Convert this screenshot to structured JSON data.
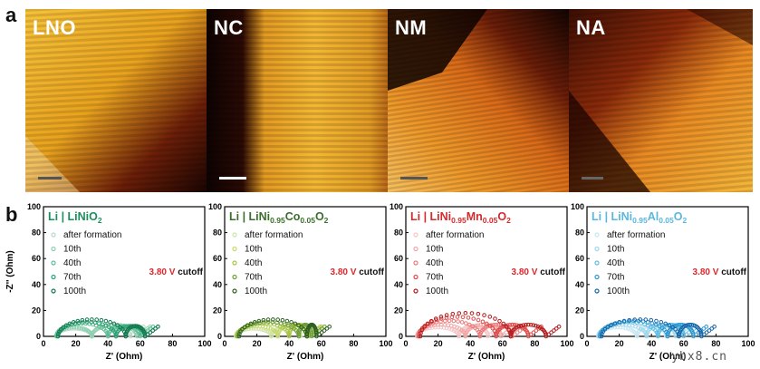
{
  "panel_a_label": "a",
  "panel_b_label": "b",
  "tem_images": [
    {
      "label": "LNO",
      "style": "lno"
    },
    {
      "label": "NC",
      "style": "nc"
    },
    {
      "label": "NM",
      "style": "nm"
    },
    {
      "label": "NA",
      "style": "na"
    }
  ],
  "watermark": "ybx8.cn",
  "chart_data": [
    {
      "type": "scatter",
      "title": {
        "base": "Li | LiNiO",
        "sub": "2"
      },
      "title_color": "#1a8f5c",
      "cutoff": "3.80 V cutoff",
      "xlabel": "Z' (Ohm)",
      "ylabel": "-Z'' (Ohm)",
      "xlim": [
        0,
        100
      ],
      "ylim": [
        0,
        100
      ],
      "ticks": [
        "0",
        "20",
        "40",
        "60",
        "80",
        "100"
      ],
      "series": [
        {
          "name": "after formation",
          "color": "#b9d9c8",
          "r_s": 8,
          "arcs": [
            {
              "c": 19,
              "h": 6
            },
            {
              "c": 42,
              "h": 8
            }
          ]
        },
        {
          "name": "10th",
          "color": "#8fd0b0",
          "r_s": 8,
          "arcs": [
            {
              "c": 19,
              "h": 7
            },
            {
              "c": 44,
              "h": 9
            }
          ]
        },
        {
          "name": "40th",
          "color": "#5fbe95",
          "r_s": 8,
          "arcs": [
            {
              "c": 24,
              "h": 10
            },
            {
              "c": 50,
              "h": 8
            }
          ]
        },
        {
          "name": "70th",
          "color": "#2aa276",
          "r_s": 9,
          "arcs": [
            {
              "c": 27,
              "h": 11
            },
            {
              "c": 54,
              "h": 8
            }
          ]
        },
        {
          "name": "100th",
          "color": "#137a4f",
          "r_s": 9,
          "arcs": [
            {
              "c": 30,
              "h": 13
            },
            {
              "c": 57,
              "h": 8
            }
          ]
        }
      ]
    },
    {
      "type": "scatter",
      "title": {
        "base": "Li | LiNi",
        "sub": "0.95",
        "mid": "Co",
        "sub2": "0.05",
        "end": "O",
        "sub3": "2"
      },
      "title_color": "#3b6e2a",
      "cutoff": "3.80 V cutoff",
      "xlabel": "Z' (Ohm)",
      "ylabel": "",
      "xlim": [
        0,
        100
      ],
      "ylim": [
        0,
        100
      ],
      "ticks": [
        "0",
        "20",
        "40",
        "60",
        "80",
        "100"
      ],
      "series": [
        {
          "name": "after formation",
          "color": "#cfe3a8",
          "r_s": 7,
          "arcs": [
            {
              "c": 18,
              "h": 6
            },
            {
              "c": 38,
              "h": 7
            }
          ]
        },
        {
          "name": "10th",
          "color": "#c6d96a",
          "r_s": 7,
          "arcs": [
            {
              "c": 20,
              "h": 8
            },
            {
              "c": 42,
              "h": 9
            }
          ]
        },
        {
          "name": "40th",
          "color": "#a8c545",
          "r_s": 8,
          "arcs": [
            {
              "c": 24,
              "h": 10
            },
            {
              "c": 46,
              "h": 9
            }
          ]
        },
        {
          "name": "70th",
          "color": "#6fa03a",
          "r_s": 8,
          "arcs": [
            {
              "c": 27,
              "h": 11
            },
            {
              "c": 50,
              "h": 9
            }
          ]
        },
        {
          "name": "100th",
          "color": "#2f5f22",
          "r_s": 9,
          "arcs": [
            {
              "c": 30,
              "h": 13
            },
            {
              "c": 54,
              "h": 9
            }
          ]
        }
      ]
    },
    {
      "type": "scatter",
      "title": {
        "base": "Li | LiNi",
        "sub": "0.95",
        "mid": "Mn",
        "sub2": "0.05",
        "end": "O",
        "sub3": "2"
      },
      "title_color": "#d22b2b",
      "cutoff": "3.80 V cutoff",
      "xlabel": "Z' (Ohm)",
      "ylabel": "",
      "xlim": [
        0,
        100
      ],
      "ylim": [
        0,
        100
      ],
      "ticks": [
        "0",
        "20",
        "40",
        "60",
        "80",
        "100"
      ],
      "series": [
        {
          "name": "after formation",
          "color": "#f5c6c6",
          "r_s": 7,
          "arcs": [
            {
              "c": 20,
              "h": 7
            },
            {
              "c": 42,
              "h": 8
            }
          ]
        },
        {
          "name": "10th",
          "color": "#f2a6a6",
          "r_s": 7,
          "arcs": [
            {
              "c": 22,
              "h": 9
            },
            {
              "c": 48,
              "h": 9
            }
          ]
        },
        {
          "name": "40th",
          "color": "#ea7a7a",
          "r_s": 8,
          "arcs": [
            {
              "c": 27,
              "h": 12
            },
            {
              "c": 56,
              "h": 9
            }
          ]
        },
        {
          "name": "70th",
          "color": "#de4a4a",
          "r_s": 8,
          "arcs": [
            {
              "c": 32,
              "h": 15
            },
            {
              "c": 66,
              "h": 9
            }
          ]
        },
        {
          "name": "100th",
          "color": "#b01c1c",
          "r_s": 9,
          "arcs": [
            {
              "c": 37,
              "h": 18
            },
            {
              "c": 76,
              "h": 9
            }
          ]
        }
      ]
    },
    {
      "type": "scatter",
      "title": {
        "base": "Li | LiNi",
        "sub": "0.95",
        "mid": "Al",
        "sub2": "0.05",
        "end": "O",
        "sub3": "2"
      },
      "title_color": "#5bb7dd",
      "cutoff": "3.80 V cutoff",
      "xlabel": "Z' (Ohm)",
      "ylabel": "",
      "xlim": [
        0,
        100
      ],
      "ylim": [
        0,
        100
      ],
      "ticks": [
        "0",
        "20",
        "40",
        "60",
        "80",
        "100"
      ],
      "series": [
        {
          "name": "after formation",
          "color": "#c8e7f3",
          "r_s": 7,
          "arcs": [
            {
              "c": 19,
              "h": 7
            },
            {
              "c": 40,
              "h": 8
            }
          ]
        },
        {
          "name": "10th",
          "color": "#9fd7ee",
          "r_s": 7,
          "arcs": [
            {
              "c": 22,
              "h": 9
            },
            {
              "c": 46,
              "h": 9
            }
          ]
        },
        {
          "name": "40th",
          "color": "#5fbde3",
          "r_s": 8,
          "arcs": [
            {
              "c": 26,
              "h": 11
            },
            {
              "c": 52,
              "h": 9
            }
          ]
        },
        {
          "name": "70th",
          "color": "#2f97cf",
          "r_s": 8,
          "arcs": [
            {
              "c": 29,
              "h": 12
            },
            {
              "c": 58,
              "h": 9
            }
          ]
        },
        {
          "name": "100th",
          "color": "#1766a8",
          "r_s": 9,
          "arcs": [
            {
              "c": 33,
              "h": 13
            },
            {
              "c": 64,
              "h": 9
            }
          ]
        }
      ]
    }
  ]
}
